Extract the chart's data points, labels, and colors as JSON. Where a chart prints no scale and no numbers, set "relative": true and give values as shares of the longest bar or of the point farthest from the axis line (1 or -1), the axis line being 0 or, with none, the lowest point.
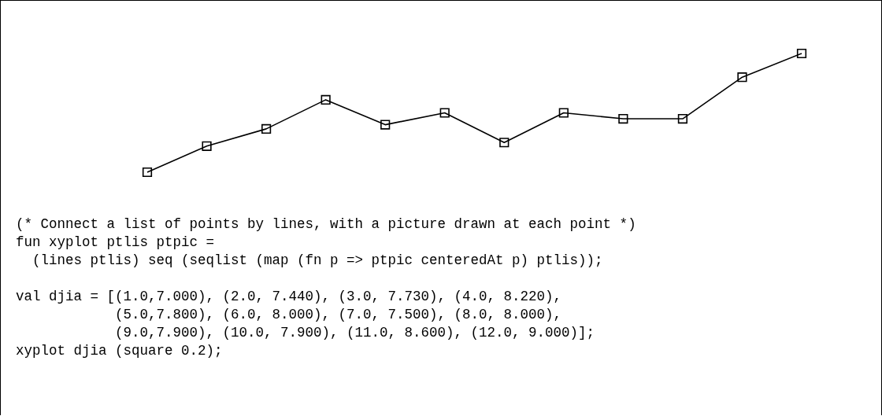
{
  "chart_data": {
    "type": "line",
    "relative": true,
    "categories": [
      null,
      null,
      null,
      null,
      null,
      null,
      null,
      null,
      null,
      null,
      null,
      null
    ],
    "series": [
      {
        "color": "#000000",
        "values": [
          0,
          0.22,
          0.365,
          0.61,
          0.4,
          0.5,
          0.25,
          0.5,
          0.45,
          0.45,
          0.8,
          1
        ]
      }
    ],
    "marker": "square",
    "line_style": "solid",
    "legend": false,
    "annotations": [
      "(* Connect a list of points by lines, with a picture drawn at each point *)\nfun xyplot ptlis ptpic =\n  (lines ptlis) seq (seqlist (map (fn p => ptpic centeredAt p) ptlis));",
      "val djia = [(1.0,7.000), (2.0, 7.440), (3.0, 7.730), (4.0, 8.220),\n            (5.0,7.800), (6.0, 8.000), (7.0, 7.500), (8.0, 8.000),\n            (9.0,7.900), (10.0, 7.900), (11.0, 8.600), (12.0, 9.000)];\nxyplot djia (square 0.2);"
    ]
  }
}
